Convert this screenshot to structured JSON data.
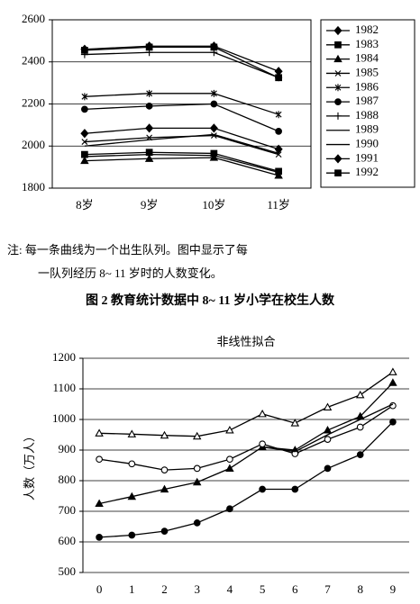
{
  "chart_data": [
    {
      "type": "line",
      "categories": [
        "8岁",
        "9岁",
        "10岁",
        "11岁"
      ],
      "ylim": [
        1800,
        2600
      ],
      "yticks": [
        1800,
        2000,
        2200,
        2400,
        2600
      ],
      "grid": true,
      "legend": "right",
      "series": [
        {
          "name": "1982",
          "color": "#000000",
          "marker": "diamond",
          "values": [
            2460,
            2475,
            2475,
            2355
          ]
        },
        {
          "name": "1983",
          "color": "#000000",
          "marker": "square",
          "values": [
            2455,
            2470,
            2470,
            2325
          ]
        },
        {
          "name": "1984",
          "color": "#000000",
          "marker": "triangle",
          "values": [
            1930,
            1940,
            1945,
            1860
          ]
        },
        {
          "name": "1985",
          "color": "#000000",
          "marker": "x",
          "values": [
            2020,
            2040,
            2050,
            1960
          ]
        },
        {
          "name": "1986",
          "color": "#000000",
          "marker": "star",
          "values": [
            2235,
            2250,
            2250,
            2150
          ]
        },
        {
          "name": "1987",
          "color": "#000000",
          "marker": "circle",
          "values": [
            2175,
            2190,
            2200,
            2070
          ]
        },
        {
          "name": "1988",
          "color": "#000000",
          "marker": "plus",
          "values": [
            2435,
            2445,
            2445,
            2325
          ]
        },
        {
          "name": "1989",
          "color": "#000000",
          "marker": "none",
          "values": [
            2000,
            2030,
            2055,
            1965
          ]
        },
        {
          "name": "1990",
          "color": "#000000",
          "marker": "none",
          "values": [
            1950,
            1960,
            1955,
            1875
          ]
        },
        {
          "name": "1991",
          "color": "#000000",
          "marker": "diamond",
          "values": [
            2060,
            2085,
            2085,
            1985
          ]
        },
        {
          "name": "1992",
          "color": "#000000",
          "marker": "square",
          "values": [
            1960,
            1970,
            1965,
            1880
          ]
        }
      ]
    },
    {
      "type": "line",
      "title": "非线性拟合",
      "y_label": "人数（万人）",
      "categories": [
        "0",
        "1",
        "2",
        "3",
        "4",
        "5",
        "6",
        "7",
        "8",
        "9"
      ],
      "ylim": [
        500,
        1200
      ],
      "yticks": [
        500,
        600,
        700,
        800,
        900,
        1000,
        1100,
        1200
      ],
      "grid": true,
      "series": [
        {
          "color": "#000000",
          "marker": "open-triangle",
          "values": [
            955,
            952,
            948,
            945,
            965,
            1018,
            988,
            1040,
            1080,
            1155
          ]
        },
        {
          "color": "#000000",
          "marker": "triangle",
          "values": [
            725,
            748,
            772,
            795,
            840,
            910,
            900,
            965,
            1010,
            1120
          ]
        },
        {
          "color": "#000000",
          "marker": "open-circle",
          "values": [
            870,
            855,
            835,
            840,
            870,
            920,
            888,
            935,
            975,
            1045
          ]
        },
        {
          "color": "#000000",
          "marker": "circle",
          "values": [
            615,
            622,
            635,
            662,
            708,
            772,
            772,
            840,
            885,
            992
          ]
        },
        {
          "color": "#000000",
          "marker": "none",
          "values": [
            null,
            null,
            null,
            null,
            null,
            910,
            895,
            950,
            1000,
            1050
          ]
        }
      ]
    }
  ],
  "note": [
    "注: 每一条曲线为一个出生队列。图中显示了每",
    "一队列经历 8~ 11 岁时的人数变化。"
  ],
  "caption": "图 2   教育统计数据中 8~ 11 岁小学在校生人数"
}
